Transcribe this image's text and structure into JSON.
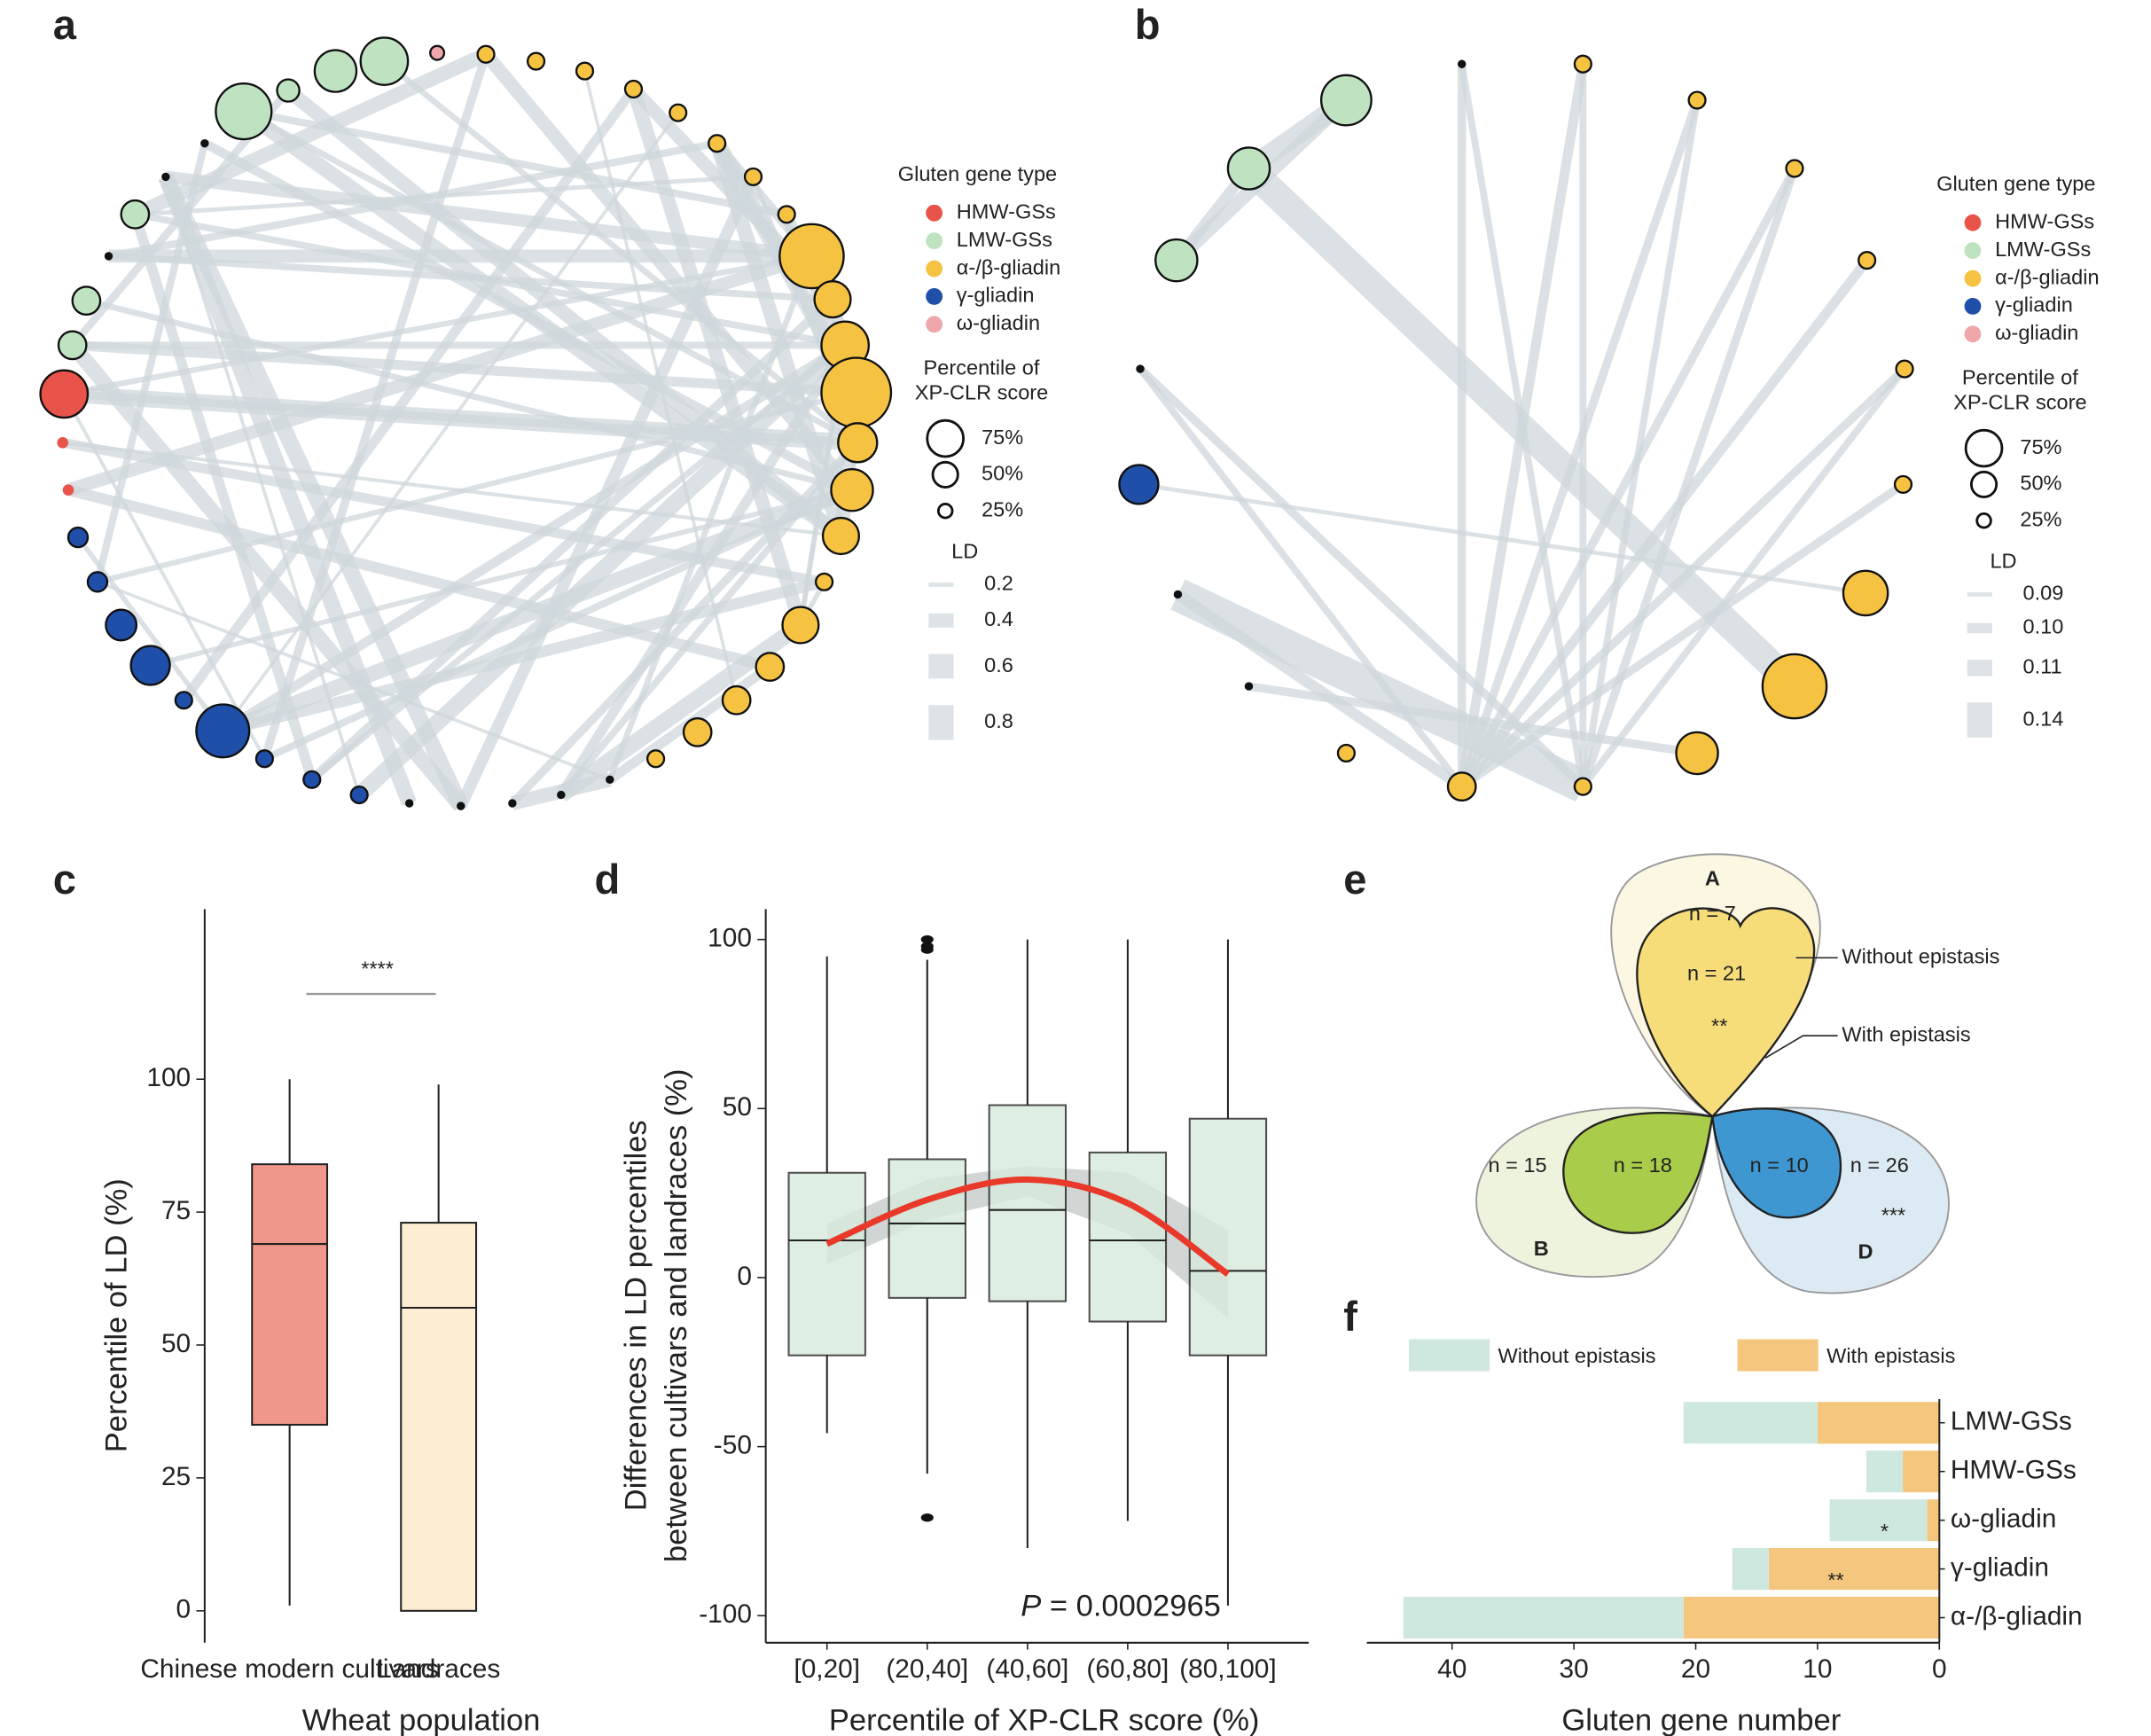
{
  "panel_labels": [
    "a",
    "b",
    "c",
    "d",
    "e",
    "f"
  ],
  "chart_data": [
    {
      "type": "network",
      "legend_title": "Gluten gene type",
      "gene_types": [
        {
          "name": "HMW-GSs",
          "color": "#e8534a"
        },
        {
          "name": "LMW-GSs",
          "color": "#bfe3c0"
        },
        {
          "name": "α-/β-gliadin",
          "color": "#f5c242"
        },
        {
          "name": "γ-gliadin",
          "color": "#1f4fa8"
        },
        {
          "name": "ω-gliadin",
          "color": "#f0a7ab"
        }
      ],
      "size_title": [
        "Percentile of",
        "XP-CLR score"
      ],
      "size_levels": [
        {
          "value": 75,
          "label": "75%"
        },
        {
          "value": 50,
          "label": "50%"
        },
        {
          "value": 25,
          "label": "25%"
        }
      ],
      "ld_title": "LD",
      "ld_levels": [
        0.2,
        0.4,
        0.6,
        0.8
      ]
    },
    {
      "type": "network",
      "legend_title": "Gluten gene type",
      "gene_types": [
        {
          "name": "HMW-GSs",
          "color": "#e8534a"
        },
        {
          "name": "LMW-GSs",
          "color": "#bfe3c0"
        },
        {
          "name": "α-/β-gliadin",
          "color": "#f5c242"
        },
        {
          "name": "γ-gliadin",
          "color": "#1f4fa8"
        },
        {
          "name": "ω-gliadin",
          "color": "#f0a7ab"
        }
      ],
      "size_title": [
        "Percentile of",
        "XP-CLR score"
      ],
      "size_levels": [
        {
          "value": 75,
          "label": "75%"
        },
        {
          "value": 50,
          "label": "50%"
        },
        {
          "value": 25,
          "label": "25%"
        }
      ],
      "ld_title": "LD",
      "ld_levels": [
        0.09,
        {
          "value": 0.1,
          "label": "0.10"
        },
        0.11,
        0.14
      ]
    },
    {
      "type": "box",
      "annotation": "****",
      "ylabel": "Percentile of LD (%)",
      "xlabel": "Wheat population",
      "categories": [
        "Chinese modern cultivars",
        "Landraces"
      ],
      "colors": [
        "#f0968a",
        "#fdeed3"
      ],
      "boxes": [
        {
          "min": 1,
          "q1": 35,
          "median": 69,
          "q3": 84,
          "max": 100
        },
        {
          "min": 0,
          "q1": 0,
          "median": 57,
          "q3": 73,
          "max": 99
        }
      ],
      "ylim": [
        -6,
        132
      ],
      "yticks": [
        0,
        25,
        50,
        75,
        100
      ]
    },
    {
      "type": "box",
      "ylabel": [
        "Differences in LD percentiles",
        "between cultivars and landraces (%)"
      ],
      "xlabel": "Percentile of XP-CLR score (%)",
      "categories": [
        "[0,20]",
        "(20,40]",
        "(40,60]",
        "(60,80]",
        "(80,100]"
      ],
      "colors": [
        "#d8eadc",
        "#d8eadc",
        "#d8eadc",
        "#d8eadc",
        "#d8eadc"
      ],
      "boxes": [
        {
          "min": -46,
          "q1": -23,
          "median": 11,
          "q3": 31,
          "max": 95
        },
        {
          "min": -58,
          "q1": -6,
          "median": 16,
          "q3": 35,
          "max": 94,
          "outliers": [
            97,
            98,
            100,
            -71
          ]
        },
        {
          "min": -80,
          "q1": -7,
          "median": 20,
          "q3": 51,
          "max": 100
        },
        {
          "min": -72,
          "q1": -13,
          "median": 11,
          "q3": 37,
          "max": 100
        },
        {
          "min": -97,
          "q1": -23,
          "median": 2,
          "q3": 47,
          "max": 100
        }
      ],
      "fit": {
        "color": "#e8392a",
        "values": [
          10,
          23,
          29,
          22,
          1
        ],
        "ci_lower": [
          4,
          17,
          24,
          13,
          -12
        ],
        "ci_upper": [
          16,
          29,
          33,
          31,
          14
        ]
      },
      "p_label": "P",
      "p_text": "= 0.0002965",
      "ylim": [
        -108,
        109
      ],
      "yticks": [
        -100,
        -50,
        0,
        50,
        100
      ]
    },
    {
      "type": "flower",
      "petals": [
        {
          "label": "A",
          "outer": "n = 7",
          "inner": "n = 21",
          "significance": "**"
        },
        {
          "label": "B",
          "outer": "n = 15",
          "inner": "n = 18"
        },
        {
          "label": "D",
          "outer": "n = 26",
          "inner": "n = 10",
          "significance": "***"
        }
      ],
      "callouts": [
        "Without epistasis",
        "With epistasis"
      ]
    },
    {
      "type": "hbar-stacked",
      "xlabel": "Gluten gene number",
      "categories": [
        "LMW-GSs",
        "HMW-GSs",
        "ω-gliadin",
        "γ-gliadin",
        "α-/β-gliadin"
      ],
      "series": [
        {
          "name": "Without epistasis",
          "color": "#cfe8df",
          "values": [
            11,
            3,
            8,
            3,
            23
          ]
        },
        {
          "name": "With epistasis",
          "color": "#f5c77e",
          "values": [
            10,
            3,
            1,
            14,
            21
          ]
        }
      ],
      "annotations": [
        null,
        null,
        "*",
        "**",
        null
      ],
      "xlim": [
        0,
        47
      ],
      "xticks": [
        0,
        10,
        20,
        30,
        40
      ],
      "reversed": true
    }
  ]
}
